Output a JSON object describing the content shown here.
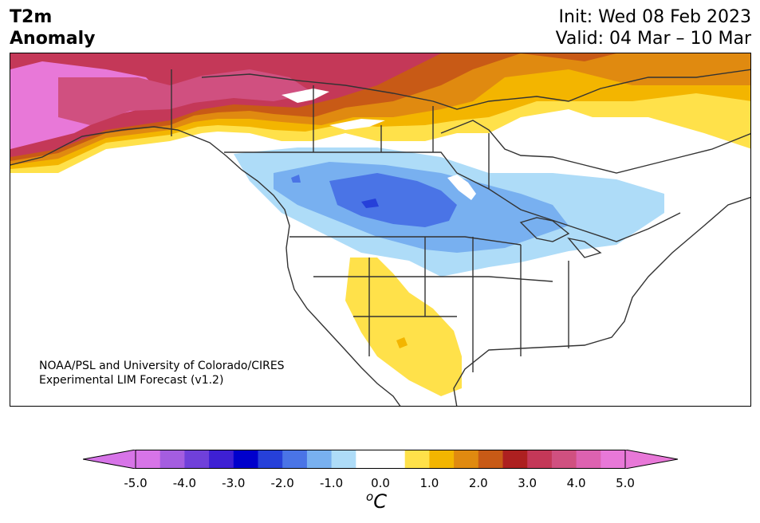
{
  "title": {
    "left_line1": "T2m",
    "left_line2": "Anomaly",
    "init": "Init: Wed 08 Feb 2023",
    "valid": "Valid: 04 Mar – 10 Mar"
  },
  "credit": {
    "line1": "NOAA/PSL and University of Colorado/CIRES",
    "line2": "Experimental LIM Forecast (v1.2)"
  },
  "colorbar": {
    "tick_labels": [
      "-5.0",
      "-4.0",
      "-3.0",
      "-2.0",
      "-1.0",
      "0.0",
      "1.0",
      "2.0",
      "3.0",
      "4.0",
      "5.0"
    ],
    "unit_base": "o",
    "unit_letter": "C",
    "colors": [
      "#d774e8",
      "#a45de0",
      "#7040da",
      "#3e20d4",
      "#0000cc",
      "#2640d9",
      "#4a74e6",
      "#78b0f0",
      "#aedcf8",
      "#ffffff",
      "#ffffff",
      "#ffe14a",
      "#f3b500",
      "#e08a10",
      "#c85a16",
      "#ad2020",
      "#c43858",
      "#d05080",
      "#dd62b0",
      "#e878d8"
    ],
    "extend_low_color": "#d774e8",
    "extend_high_color": "#e878d8"
  }
}
